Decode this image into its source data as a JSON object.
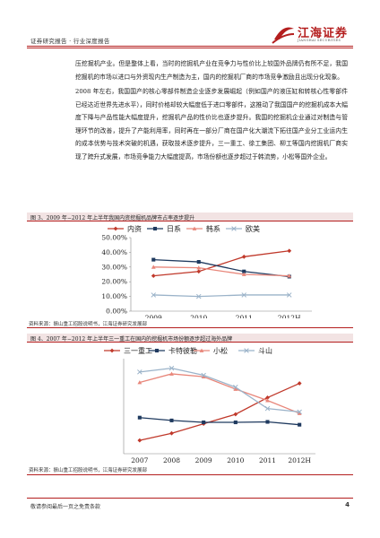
{
  "header": {
    "report_type": "证券研究报告 · 行业深度报告",
    "brand_name": "江海证券",
    "brand_sub": "JIANGHAI SECURITIES"
  },
  "body": {
    "p1": "压挖掘机产业。但是整体上看，当时的挖掘机产业在竞争力与性价比上较国外品牌仍有所不足，我国挖掘机的市场以进口与外资现内生产制造为主，国内的挖掘机厂商的市场竞争激励且出现分化现象。",
    "p2": "2008 年左右，我国国产的核心零部件制造企业逐步发展崛起（例如国产的液压缸和转核心性零部件已经达近世界先进水平），同时价格却较大幅度低于进口零部件，这推动了我国国产的挖掘机成本大幅度下降与产品性能大幅度提升，挖掘机产品的性价比也逐步提升。我国的挖掘机企业通过对制造与管理环节的改善，提升了产能利用率，同时再在一部分厂商在国产化大潮流下拓往国产业分工业运内生的成本优势与技术突破的机遇，获取技术逐步提升，三一重工、徐工集团、柳工等国内挖掘机厂商实现了跨升式发展，市场竞争能力大幅度提高，市场份额也逐步超过于韩流势，小松等国外企业。"
  },
  "figure3": {
    "title": "图 3、2009 年−2012 年上半年我国内资挖掘机品牌市占率逐步提升",
    "source": "资料来源：振山重工招股说明书，江海证券研究发展部"
  },
  "figure4": {
    "title": "图 4、2007 年−2012 年上半年三一重工在国内的挖掘机市场份额逐步超过海外品牌",
    "source": "资料来源：振山重工招股说明书，江海证券研究发展部"
  },
  "footer": {
    "disclaimer": "敬请参阅最后一页之免责条款",
    "page": "4"
  },
  "chart_data": [
    {
      "type": "line",
      "categories": [
        "2009",
        "2010",
        "2011",
        "2012H"
      ],
      "series": [
        {
          "name": "内资",
          "values": [
            0.24,
            0.27,
            0.37,
            0.41
          ],
          "color": "#c0392b",
          "marker": "diamond"
        },
        {
          "name": "日系",
          "values": [
            0.35,
            0.335,
            0.27,
            0.235
          ],
          "color": "#1f3a5f",
          "marker": "square"
        },
        {
          "name": "韩系",
          "values": [
            0.3,
            0.295,
            0.25,
            0.24
          ],
          "color": "#e8867a",
          "marker": "triangle"
        },
        {
          "name": "欧美",
          "values": [
            0.11,
            0.1,
            0.11,
            0.11
          ],
          "color": "#9bb3c9",
          "marker": "cross"
        }
      ],
      "ylim": [
        0,
        0.5
      ],
      "yticks": [
        "0.00%",
        "10.00%",
        "20.00%",
        "30.00%",
        "40.00%",
        "50.00%"
      ],
      "legend": "top",
      "grid": false
    },
    {
      "type": "line",
      "categories": [
        "2007",
        "2008",
        "2009",
        "2010",
        "2011",
        "2012H"
      ],
      "series": [
        {
          "name": "三一重工",
          "values": [
            2.8,
            4.3,
            6.3,
            8.3,
            11.8,
            14.8
          ],
          "color": "#c0392b",
          "marker": "diamond"
        },
        {
          "name": "卡特彼勒",
          "values": [
            7.6,
            7.0,
            6.6,
            6.6,
            6.7,
            6.1
          ],
          "color": "#1f3a5f",
          "marker": "square"
        },
        {
          "name": "小松",
          "values": [
            15.0,
            16.8,
            16.2,
            13.6,
            11.2,
            8.5
          ],
          "color": "#e8867a",
          "marker": "triangle"
        },
        {
          "name": "斗山",
          "values": [
            17.2,
            18.0,
            16.5,
            14.0,
            9.5,
            8.8
          ],
          "color": "#9bb3c9",
          "marker": "cross"
        }
      ],
      "ylim": [
        0,
        20
      ],
      "yticks": [],
      "legend": "top",
      "grid": false
    }
  ]
}
